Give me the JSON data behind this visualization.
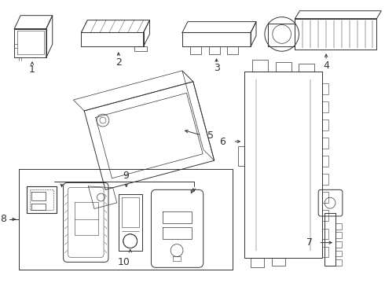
{
  "bg_color": "#ffffff",
  "line_color": "#333333",
  "lw": 0.7,
  "figsize": [
    4.9,
    3.6
  ],
  "dpi": 100
}
